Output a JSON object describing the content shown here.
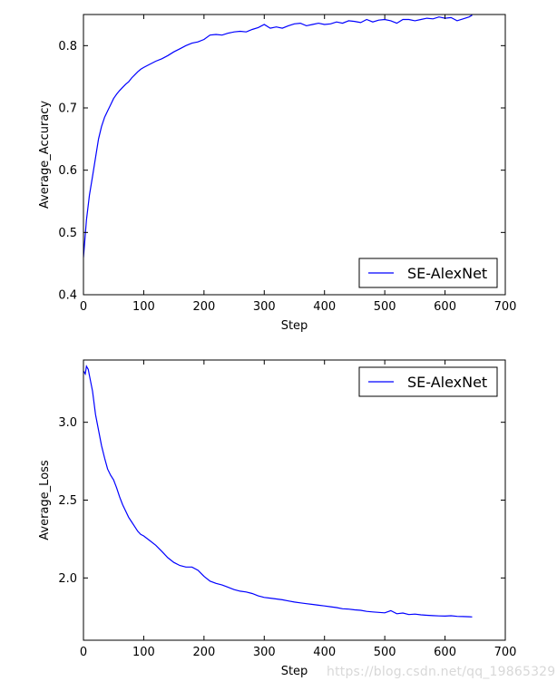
{
  "chart_data": [
    {
      "type": "line",
      "xlabel": "Step",
      "ylabel": "Average_Accuracy",
      "xlim": [
        0,
        700
      ],
      "ylim": [
        0.4,
        0.85
      ],
      "x_ticks": [
        0,
        100,
        200,
        300,
        400,
        500,
        600,
        700
      ],
      "y_ticks": [
        0.4,
        0.5,
        0.6,
        0.7,
        0.8
      ],
      "y_tick_labels": [
        "0.4",
        "0.5",
        "0.6",
        "0.7",
        "0.8"
      ],
      "grid": false,
      "legend": "lower-right",
      "series": [
        {
          "name": "SE-AlexNet",
          "color": "#0000ff",
          "x": [
            0,
            5,
            10,
            15,
            20,
            25,
            30,
            35,
            40,
            45,
            50,
            55,
            60,
            65,
            70,
            75,
            80,
            85,
            90,
            95,
            100,
            110,
            120,
            130,
            140,
            150,
            160,
            170,
            180,
            190,
            200,
            210,
            220,
            230,
            240,
            250,
            260,
            270,
            280,
            290,
            300,
            310,
            320,
            330,
            340,
            350,
            360,
            370,
            380,
            390,
            400,
            410,
            420,
            430,
            440,
            450,
            460,
            470,
            480,
            490,
            500,
            510,
            520,
            530,
            540,
            550,
            560,
            570,
            580,
            590,
            600,
            610,
            620,
            630,
            640,
            645
          ],
          "y": [
            0.46,
            0.52,
            0.56,
            0.59,
            0.62,
            0.65,
            0.67,
            0.685,
            0.695,
            0.705,
            0.715,
            0.722,
            0.728,
            0.733,
            0.738,
            0.742,
            0.748,
            0.753,
            0.758,
            0.762,
            0.765,
            0.77,
            0.775,
            0.779,
            0.784,
            0.79,
            0.795,
            0.8,
            0.804,
            0.806,
            0.81,
            0.817,
            0.818,
            0.817,
            0.82,
            0.822,
            0.823,
            0.822,
            0.826,
            0.829,
            0.834,
            0.828,
            0.83,
            0.828,
            0.832,
            0.835,
            0.836,
            0.832,
            0.834,
            0.836,
            0.834,
            0.835,
            0.838,
            0.836,
            0.84,
            0.839,
            0.837,
            0.842,
            0.838,
            0.841,
            0.842,
            0.84,
            0.836,
            0.842,
            0.842,
            0.84,
            0.842,
            0.844,
            0.843,
            0.846,
            0.844,
            0.845,
            0.84,
            0.843,
            0.846,
            0.849
          ]
        }
      ]
    },
    {
      "type": "line",
      "xlabel": "Step",
      "ylabel": "Average_Loss",
      "xlim": [
        0,
        700
      ],
      "ylim": [
        1.6,
        3.4
      ],
      "x_ticks": [
        0,
        100,
        200,
        300,
        400,
        500,
        600,
        700
      ],
      "y_ticks": [
        2.0,
        2.5,
        3.0
      ],
      "y_tick_labels": [
        "2.0",
        "2.5",
        "3.0"
      ],
      "grid": false,
      "legend": "upper-right",
      "series": [
        {
          "name": "SE-AlexNet",
          "color": "#0000ff",
          "x": [
            0,
            3,
            5,
            8,
            10,
            15,
            20,
            25,
            30,
            35,
            40,
            45,
            50,
            55,
            60,
            65,
            70,
            75,
            80,
            85,
            90,
            95,
            100,
            110,
            120,
            130,
            140,
            150,
            160,
            170,
            180,
            190,
            200,
            210,
            220,
            230,
            240,
            250,
            260,
            270,
            280,
            290,
            300,
            310,
            320,
            330,
            340,
            350,
            360,
            370,
            380,
            390,
            400,
            410,
            420,
            430,
            440,
            450,
            460,
            470,
            480,
            490,
            500,
            510,
            520,
            530,
            540,
            550,
            560,
            570,
            580,
            590,
            600,
            610,
            620,
            630,
            640,
            645
          ],
          "y": [
            3.33,
            3.31,
            3.36,
            3.34,
            3.3,
            3.2,
            3.05,
            2.95,
            2.85,
            2.77,
            2.7,
            2.66,
            2.63,
            2.58,
            2.52,
            2.47,
            2.43,
            2.39,
            2.36,
            2.33,
            2.3,
            2.28,
            2.27,
            2.24,
            2.21,
            2.17,
            2.13,
            2.1,
            2.08,
            2.07,
            2.07,
            2.05,
            2.01,
            1.98,
            1.965,
            1.955,
            1.94,
            1.925,
            1.915,
            1.91,
            1.9,
            1.885,
            1.875,
            1.87,
            1.865,
            1.86,
            1.852,
            1.845,
            1.84,
            1.835,
            1.83,
            1.825,
            1.82,
            1.815,
            1.81,
            1.802,
            1.8,
            1.795,
            1.792,
            1.785,
            1.782,
            1.779,
            1.776,
            1.79,
            1.77,
            1.775,
            1.765,
            1.768,
            1.763,
            1.76,
            1.758,
            1.756,
            1.755,
            1.757,
            1.753,
            1.752,
            1.751,
            1.75
          ]
        }
      ]
    }
  ],
  "watermark": "https://blog.csdn.net/qq_19865329"
}
